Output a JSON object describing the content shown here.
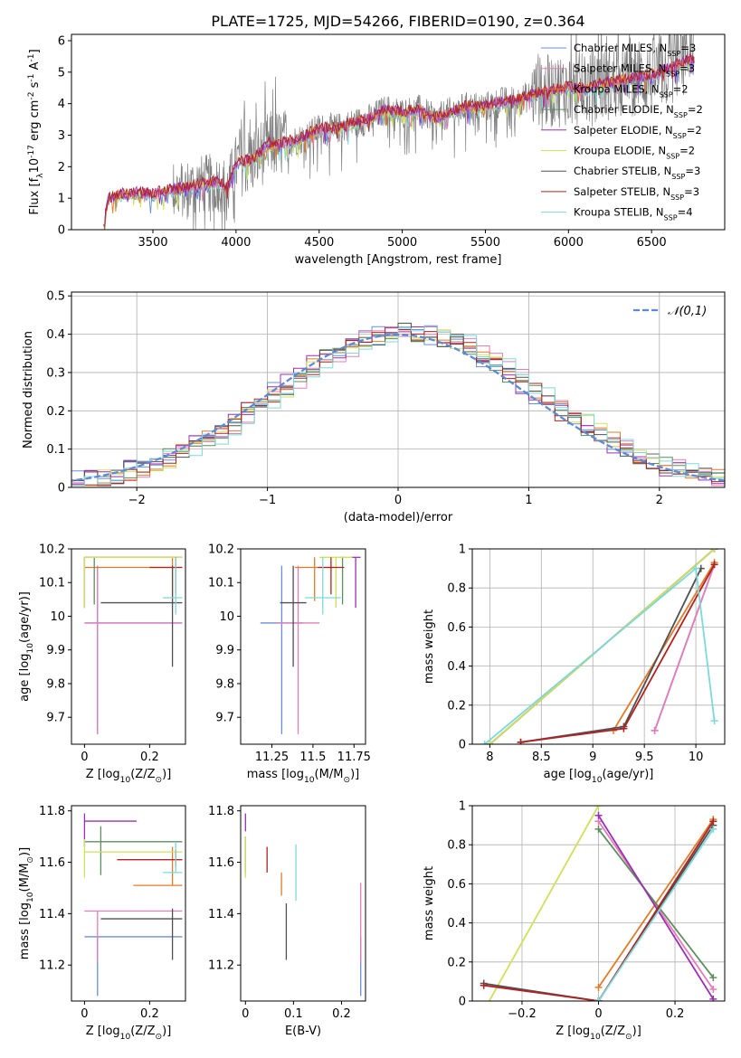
{
  "figure": {
    "title": "PLATE=1725, MJD=54266, FIBERID=0190, z=0.364"
  },
  "colors": {
    "Chabrier MILES": "#6a8fd6",
    "Salpeter MILES": "#e67db9",
    "Kroupa MILES": "#e07b2a",
    "Chabrier ELODIE": "#5d8f5d",
    "Salpeter ELODIE": "#9b2fb3",
    "Kroupa ELODIE": "#cfe05a",
    "Chabrier STELIB": "#505050",
    "Salpeter STELIB": "#b22222",
    "Kroupa STELIB": "#7fd8d8",
    "data": "#808080",
    "normal": "#5b8bd6"
  },
  "chart_data": [
    {
      "id": "spectrum",
      "type": "line",
      "title": "PLATE=1725, MJD=54266, FIBERID=0190, z=0.364",
      "xlabel": "wavelength [Angstrom, rest frame]",
      "ylabel": "Flux [f$_\\lambda$10$^{-17}$ erg cm$^{-2}$ s$^{-1}$ A$^{-1}$]",
      "xlim": [
        3010,
        6940
      ],
      "ylim": [
        0,
        6.2
      ],
      "xticks": [
        3500,
        4000,
        4500,
        5000,
        5500,
        6000,
        6500
      ],
      "yticks": [
        0,
        1,
        2,
        3,
        4,
        5,
        6
      ],
      "legend_position": "upper-right",
      "legend": [
        {
          "label": "Chabrier MILES, N$_{SSP}$=3",
          "color": "#6a8fd6"
        },
        {
          "label": "Salpeter MILES, N$_{SSP}$=3",
          "color": "#e67db9"
        },
        {
          "label": "Kroupa MILES, N$_{SSP}$=2",
          "color": "#e07b2a"
        },
        {
          "label": "Chabrier ELODIE, N$_{SSP}$=2",
          "color": "#5d8f5d"
        },
        {
          "label": "Salpeter ELODIE, N$_{SSP}$=2",
          "color": "#9b2fb3"
        },
        {
          "label": "Kroupa ELODIE, N$_{SSP}$=2",
          "color": "#cfe05a"
        },
        {
          "label": "Chabrier STELIB, N$_{SSP}$=3",
          "color": "#505050"
        },
        {
          "label": "Salpeter STELIB, N$_{SSP}$=3",
          "color": "#b22222"
        },
        {
          "label": "Kroupa STELIB, N$_{SSP}$=4",
          "color": "#7fd8d8"
        }
      ],
      "continuum": {
        "x": [
          3200,
          3230,
          3300,
          3400,
          3500,
          3600,
          3700,
          3800,
          3900,
          3950,
          4000,
          4100,
          4200,
          4300,
          4400,
          4500,
          4600,
          4700,
          4800,
          4900,
          5000,
          5100,
          5200,
          5300,
          5400,
          5500,
          5600,
          5700,
          5800,
          5900,
          6000,
          6100,
          6200,
          6300,
          6400,
          6500,
          6600,
          6700,
          6750
        ],
        "y": [
          0,
          0.95,
          1.1,
          1.15,
          1.1,
          1.25,
          1.3,
          1.45,
          1.5,
          1.3,
          2.1,
          2.2,
          2.7,
          2.75,
          2.9,
          3.2,
          3.2,
          3.35,
          3.5,
          3.8,
          3.7,
          3.8,
          3.5,
          3.75,
          3.9,
          3.9,
          4.05,
          4.1,
          4.3,
          4.4,
          4.5,
          4.45,
          4.6,
          4.7,
          4.8,
          4.9,
          5.1,
          5.3,
          5.4
        ]
      }
    },
    {
      "id": "residuals",
      "type": "histogram",
      "xlabel": "(data-model)/error",
      "ylabel": "Normed distribution",
      "xlim": [
        -2.5,
        2.5
      ],
      "ylim": [
        0,
        0.51
      ],
      "xticks": [
        -2,
        -1,
        0,
        1,
        2
      ],
      "yticks": [
        0.0,
        0.1,
        0.2,
        0.3,
        0.4,
        0.5
      ],
      "grid": true,
      "legend_position": "upper-right",
      "legend": [
        {
          "label": "$\\mathcal{N}(0,1)$",
          "color": "#5b8bd6",
          "style": "dashed"
        }
      ],
      "bin_width": 0.1
    },
    {
      "id": "age-vs-Z",
      "type": "errorbar",
      "xlabel": "Z [log$_{10}$(Z/Z$_\\odot$)]",
      "ylabel": "age  [log$_{10}$(age/yr)]",
      "xlim": [
        -0.04,
        0.31
      ],
      "ylim": [
        9.62,
        10.2
      ],
      "xticks": [
        0.0,
        0.2
      ],
      "yticks": [
        9.7,
        9.8,
        9.9,
        10.0,
        10.1,
        10.2
      ],
      "points": [
        {
          "model": "Chabrier MILES",
          "x": 0.04,
          "y": 9.98,
          "xerr": [
            0.04,
            0.26
          ],
          "yerr": [
            0.33,
            0.17
          ]
        },
        {
          "model": "Salpeter MILES",
          "x": 0.04,
          "y": 9.98,
          "xerr": [
            0.04,
            0.26
          ],
          "yerr": [
            0.33,
            0.17
          ]
        },
        {
          "model": "Kroupa MILES",
          "x": 0.27,
          "y": 10.145,
          "xerr": [
            0.27,
            0.03
          ],
          "yerr": [
            0.1,
            0.03
          ]
        },
        {
          "model": "Chabrier ELODIE",
          "x": 0.03,
          "y": 10.175,
          "xerr": [
            0.03,
            0.26
          ],
          "yerr": [
            0.14,
            0.0
          ]
        },
        {
          "model": "Salpeter ELODIE",
          "x": 0.0,
          "y": 10.175,
          "xerr": [
            0.0,
            0.3
          ],
          "yerr": [
            0.15,
            0.0
          ]
        },
        {
          "model": "Kroupa ELODIE",
          "x": 0.0,
          "y": 10.175,
          "xerr": [
            0.0,
            0.3
          ],
          "yerr": [
            0.15,
            0.0
          ]
        },
        {
          "model": "Chabrier STELIB",
          "x": 0.27,
          "y": 10.04,
          "xerr": [
            0.22,
            0.03
          ],
          "yerr": [
            0.19,
            0.11
          ]
        },
        {
          "model": "Salpeter STELIB",
          "x": 0.28,
          "y": 10.145,
          "xerr": [
            0.08,
            0.02
          ],
          "yerr": [
            0.08,
            0.03
          ]
        },
        {
          "model": "Kroupa STELIB",
          "x": 0.28,
          "y": 10.055,
          "xerr": [
            0.04,
            0.02
          ],
          "yerr": [
            0.05,
            0.12
          ]
        }
      ]
    },
    {
      "id": "age-vs-mass",
      "type": "errorbar",
      "xlabel": "mass [log$_{10}$(M/M$_\\odot$)]",
      "ylabel": "",
      "xlim": [
        11.06,
        11.82
      ],
      "ylim": [
        9.62,
        10.2
      ],
      "xticks": [
        11.25,
        11.5,
        11.75
      ],
      "yticks": [
        9.7,
        9.8,
        9.9,
        10.0,
        10.1,
        10.2
      ],
      "points": [
        {
          "model": "Chabrier MILES",
          "x": 11.31,
          "y": 9.98,
          "xerr": [
            0.13,
            0.13
          ],
          "yerr": [
            0.33,
            0.17
          ]
        },
        {
          "model": "Salpeter MILES",
          "x": 11.41,
          "y": 9.98,
          "xerr": [
            0.13,
            0.13
          ],
          "yerr": [
            0.33,
            0.17
          ]
        },
        {
          "model": "Kroupa MILES",
          "x": 11.51,
          "y": 10.145,
          "xerr": [
            0.12,
            0.12
          ],
          "yerr": [
            0.1,
            0.03
          ]
        },
        {
          "model": "Chabrier ELODIE",
          "x": 11.68,
          "y": 10.175,
          "xerr": [
            0.01,
            0.01
          ],
          "yerr": [
            0.14,
            0.0
          ]
        },
        {
          "model": "Salpeter ELODIE",
          "x": 11.76,
          "y": 10.175,
          "xerr": [
            0.03,
            0.03
          ],
          "yerr": [
            0.15,
            0.0
          ]
        },
        {
          "model": "Kroupa ELODIE",
          "x": 11.64,
          "y": 10.175,
          "xerr": [
            0.1,
            0.1
          ],
          "yerr": [
            0.15,
            0.0
          ]
        },
        {
          "model": "Chabrier STELIB",
          "x": 11.38,
          "y": 10.04,
          "xerr": [
            0.08,
            0.08
          ],
          "yerr": [
            0.19,
            0.11
          ]
        },
        {
          "model": "Salpeter STELIB",
          "x": 11.61,
          "y": 10.145,
          "xerr": [
            0.08,
            0.08
          ],
          "yerr": [
            0.08,
            0.03
          ]
        },
        {
          "model": "Kroupa STELIB",
          "x": 11.56,
          "y": 10.055,
          "xerr": [
            0.11,
            0.11
          ],
          "yerr": [
            0.05,
            0.12
          ]
        }
      ]
    },
    {
      "id": "weight-vs-age",
      "type": "line",
      "xlabel": "age  [log$_{10}$(age/yr)]",
      "ylabel": "mass weight",
      "xlim": [
        7.83,
        10.28
      ],
      "ylim": [
        0,
        1.0
      ],
      "xticks": [
        8.0,
        8.5,
        9.0,
        9.5,
        10.0
      ],
      "yticks": [
        0.0,
        0.2,
        0.4,
        0.6,
        0.8,
        1.0
      ],
      "grid": true,
      "series": [
        {
          "model": "Chabrier MILES",
          "x": [
            9.6,
            10.18
          ],
          "y": [
            0.07,
            0.92
          ]
        },
        {
          "model": "Salpeter MILES",
          "x": [
            9.6,
            10.18
          ],
          "y": [
            0.07,
            0.92
          ]
        },
        {
          "model": "Kroupa MILES",
          "x": [
            9.2,
            10.18
          ],
          "y": [
            0.07,
            0.93
          ]
        },
        {
          "model": "Chabrier ELODIE",
          "x": [
            8.0,
            10.18
          ],
          "y": [
            0.0,
            1.0
          ]
        },
        {
          "model": "Salpeter ELODIE",
          "x": [
            8.0,
            10.18
          ],
          "y": [
            0.0,
            1.0
          ]
        },
        {
          "model": "Kroupa ELODIE",
          "x": [
            8.0,
            10.18
          ],
          "y": [
            0.0,
            1.0
          ]
        },
        {
          "model": "Chabrier STELIB",
          "x": [
            8.3,
            9.3,
            10.05
          ],
          "y": [
            0.01,
            0.09,
            0.9
          ]
        },
        {
          "model": "Salpeter STELIB",
          "x": [
            8.3,
            9.3,
            10.18
          ],
          "y": [
            0.01,
            0.08,
            0.92
          ]
        },
        {
          "model": "Kroupa STELIB",
          "x": [
            7.95,
            10.0,
            10.18
          ],
          "y": [
            0.0,
            0.9,
            0.12
          ]
        }
      ]
    },
    {
      "id": "mass-vs-Z",
      "type": "errorbar",
      "xlabel": "Z [log$_{10}$(Z/Z$_\\odot$)]",
      "ylabel": "mass [log$_{10}$(M/M$_\\odot$)]",
      "xlim": [
        -0.04,
        0.31
      ],
      "ylim": [
        11.06,
        11.82
      ],
      "xticks": [
        0.0,
        0.2
      ],
      "yticks": [
        11.2,
        11.4,
        11.6,
        11.8
      ],
      "points": [
        {
          "model": "Chabrier MILES",
          "x": 0.04,
          "y": 11.31,
          "xerr": [
            0.04,
            0.26
          ],
          "yerr": [
            0.23,
            0.0
          ]
        },
        {
          "model": "Salpeter MILES",
          "x": 0.04,
          "y": 11.41,
          "xerr": [
            0.04,
            0.26
          ],
          "yerr": [
            0.2,
            0.0
          ]
        },
        {
          "model": "Kroupa MILES",
          "x": 0.27,
          "y": 11.51,
          "xerr": [
            0.12,
            0.03
          ],
          "yerr": [
            0.0,
            0.15
          ]
        },
        {
          "model": "Chabrier ELODIE",
          "x": 0.05,
          "y": 11.68,
          "xerr": [
            0.05,
            0.25
          ],
          "yerr": [
            0.13,
            0.06
          ]
        },
        {
          "model": "Salpeter ELODIE",
          "x": 0.0,
          "y": 11.76,
          "xerr": [
            0.0,
            0.16
          ],
          "yerr": [
            0.1,
            0.03
          ]
        },
        {
          "model": "Kroupa ELODIE",
          "x": 0.0,
          "y": 11.64,
          "xerr": [
            0.0,
            0.3
          ],
          "yerr": [
            0.1,
            0.05
          ]
        },
        {
          "model": "Chabrier STELIB",
          "x": 0.27,
          "y": 11.38,
          "xerr": [
            0.22,
            0.03
          ],
          "yerr": [
            0.16,
            0.04
          ]
        },
        {
          "model": "Salpeter STELIB",
          "x": 0.28,
          "y": 11.61,
          "xerr": [
            0.18,
            0.02
          ],
          "yerr": [
            0.03,
            0.04
          ]
        },
        {
          "model": "Kroupa STELIB",
          "x": 0.28,
          "y": 11.56,
          "xerr": [
            0.04,
            0.02
          ],
          "yerr": [
            0.0,
            0.12
          ]
        }
      ]
    },
    {
      "id": "mass-vs-ebv",
      "type": "errorbar",
      "xlabel": "E(B-V)",
      "ylabel": "",
      "xlim": [
        -0.01,
        0.25
      ],
      "ylim": [
        11.06,
        11.82
      ],
      "xticks": [
        0.0,
        0.1,
        0.2
      ],
      "yticks": [
        11.2,
        11.4,
        11.6,
        11.8
      ],
      "points": [
        {
          "model": "Chabrier MILES",
          "x": 0.24,
          "y": 11.31,
          "yerr": [
            0.23,
            0.0
          ]
        },
        {
          "model": "Salpeter MILES",
          "x": 0.24,
          "y": 11.41,
          "yerr": [
            0.2,
            0.11
          ]
        },
        {
          "model": "Kroupa MILES",
          "x": 0.075,
          "y": 11.51,
          "yerr": [
            0.04,
            0.05
          ]
        },
        {
          "model": "Chabrier ELODIE",
          "x": 0.0,
          "y": 11.68,
          "yerr": [
            0.12,
            0.02
          ]
        },
        {
          "model": "Salpeter ELODIE",
          "x": 0.0,
          "y": 11.76,
          "yerr": [
            0.04,
            0.03
          ]
        },
        {
          "model": "Kroupa ELODIE",
          "x": 0.0,
          "y": 11.64,
          "yerr": [
            0.1,
            0.06
          ]
        },
        {
          "model": "Chabrier STELIB",
          "x": 0.085,
          "y": 11.38,
          "yerr": [
            0.16,
            0.06
          ]
        },
        {
          "model": "Salpeter STELIB",
          "x": 0.045,
          "y": 11.61,
          "yerr": [
            0.05,
            0.05
          ]
        },
        {
          "model": "Kroupa STELIB",
          "x": 0.105,
          "y": 11.56,
          "yerr": [
            0.11,
            0.11
          ]
        }
      ]
    },
    {
      "id": "weight-vs-Z",
      "type": "line",
      "xlabel": "Z [log$_{10}$(Z/Z$_\\odot$)]",
      "ylabel": "mass weight",
      "xlim": [
        -0.33,
        0.33
      ],
      "ylim": [
        0,
        1.0
      ],
      "xticks": [
        -0.2,
        0.0,
        0.2
      ],
      "yticks": [
        0.0,
        0.2,
        0.4,
        0.6,
        0.8,
        1.0
      ],
      "grid": true,
      "series": [
        {
          "model": "Chabrier MILES",
          "x": [
            0.0,
            0.3
          ],
          "y": [
            0.0,
            0.92
          ]
        },
        {
          "model": "Salpeter MILES",
          "x": [
            0.0,
            0.3
          ],
          "y": [
            0.92,
            0.06
          ]
        },
        {
          "model": "Kroupa MILES",
          "x": [
            0.0,
            0.3
          ],
          "y": [
            0.07,
            0.93
          ]
        },
        {
          "model": "Chabrier ELODIE",
          "x": [
            0.0,
            0.3
          ],
          "y": [
            0.88,
            0.12
          ]
        },
        {
          "model": "Salpeter ELODIE",
          "x": [
            0.0,
            0.3
          ],
          "y": [
            0.95,
            0.01
          ]
        },
        {
          "model": "Kroupa ELODIE",
          "x": [
            -0.3,
            0.0
          ],
          "y": [
            -0.05,
            1.0
          ]
        },
        {
          "model": "Chabrier STELIB",
          "x": [
            -0.3,
            0.0,
            0.3
          ],
          "y": [
            0.09,
            0.0,
            0.9
          ]
        },
        {
          "model": "Salpeter STELIB",
          "x": [
            -0.3,
            0.0,
            0.3
          ],
          "y": [
            0.08,
            0.0,
            0.92
          ]
        },
        {
          "model": "Kroupa STELIB",
          "x": [
            0.0,
            0.3
          ],
          "y": [
            0.0,
            0.88
          ]
        }
      ]
    }
  ]
}
